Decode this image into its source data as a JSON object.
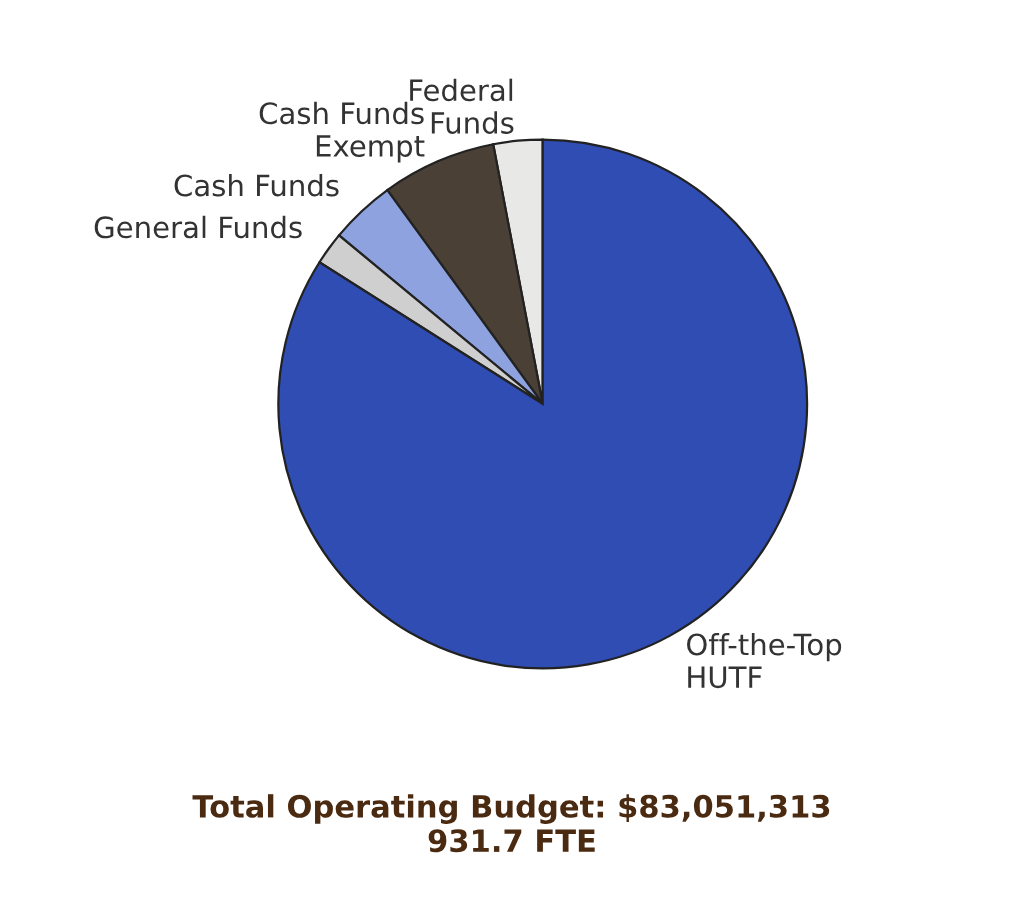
{
  "chart_data": {
    "type": "pie",
    "categories": [
      "Federal\nFunds",
      "Cash Funds\nExempt",
      "Cash Funds",
      "General Funds",
      "Off-the-Top\nHUTF"
    ],
    "values": [
      3,
      7,
      4,
      2,
      84
    ],
    "colors": [
      "#e8e8e6",
      "#4b4036",
      "#8ea2e0",
      "#cfcfcf",
      "#2f4db3"
    ],
    "annotations": [
      "Total Operating Budget: $83,051,313\n931.7 FTE"
    ]
  }
}
